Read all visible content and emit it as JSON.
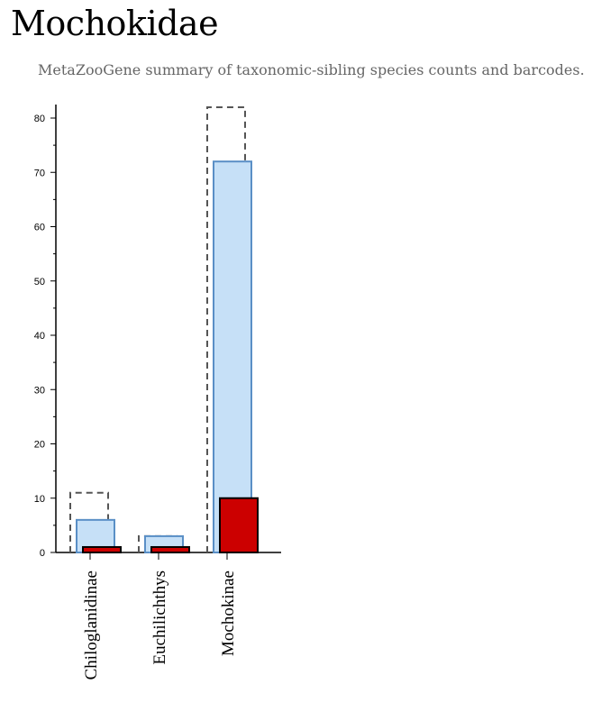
{
  "title": "Mochokidae",
  "subtitle": "MetaZooGene summary of taxonomic-sibling species counts and barcodes.",
  "chart_data": {
    "type": "bar",
    "categories": [
      "Chiloglanidinae",
      "Euchilichthys",
      "Mochokinae"
    ],
    "series": [
      {
        "values": [
          11,
          3,
          82
        ],
        "style": "dashed-outline",
        "color": "#555555"
      },
      {
        "values": [
          6,
          3,
          72
        ],
        "style": "filled",
        "color": "#c6e0f7",
        "stroke": "#5a8fc6"
      },
      {
        "values": [
          1,
          1,
          10
        ],
        "style": "filled",
        "color": "#cc0000",
        "stroke": "#000000"
      }
    ],
    "yticks": [
      0,
      10,
      20,
      30,
      40,
      50,
      60,
      70,
      80
    ],
    "ylim": [
      0,
      82
    ],
    "xlabel": "",
    "ylabel": "",
    "grid": false
  }
}
